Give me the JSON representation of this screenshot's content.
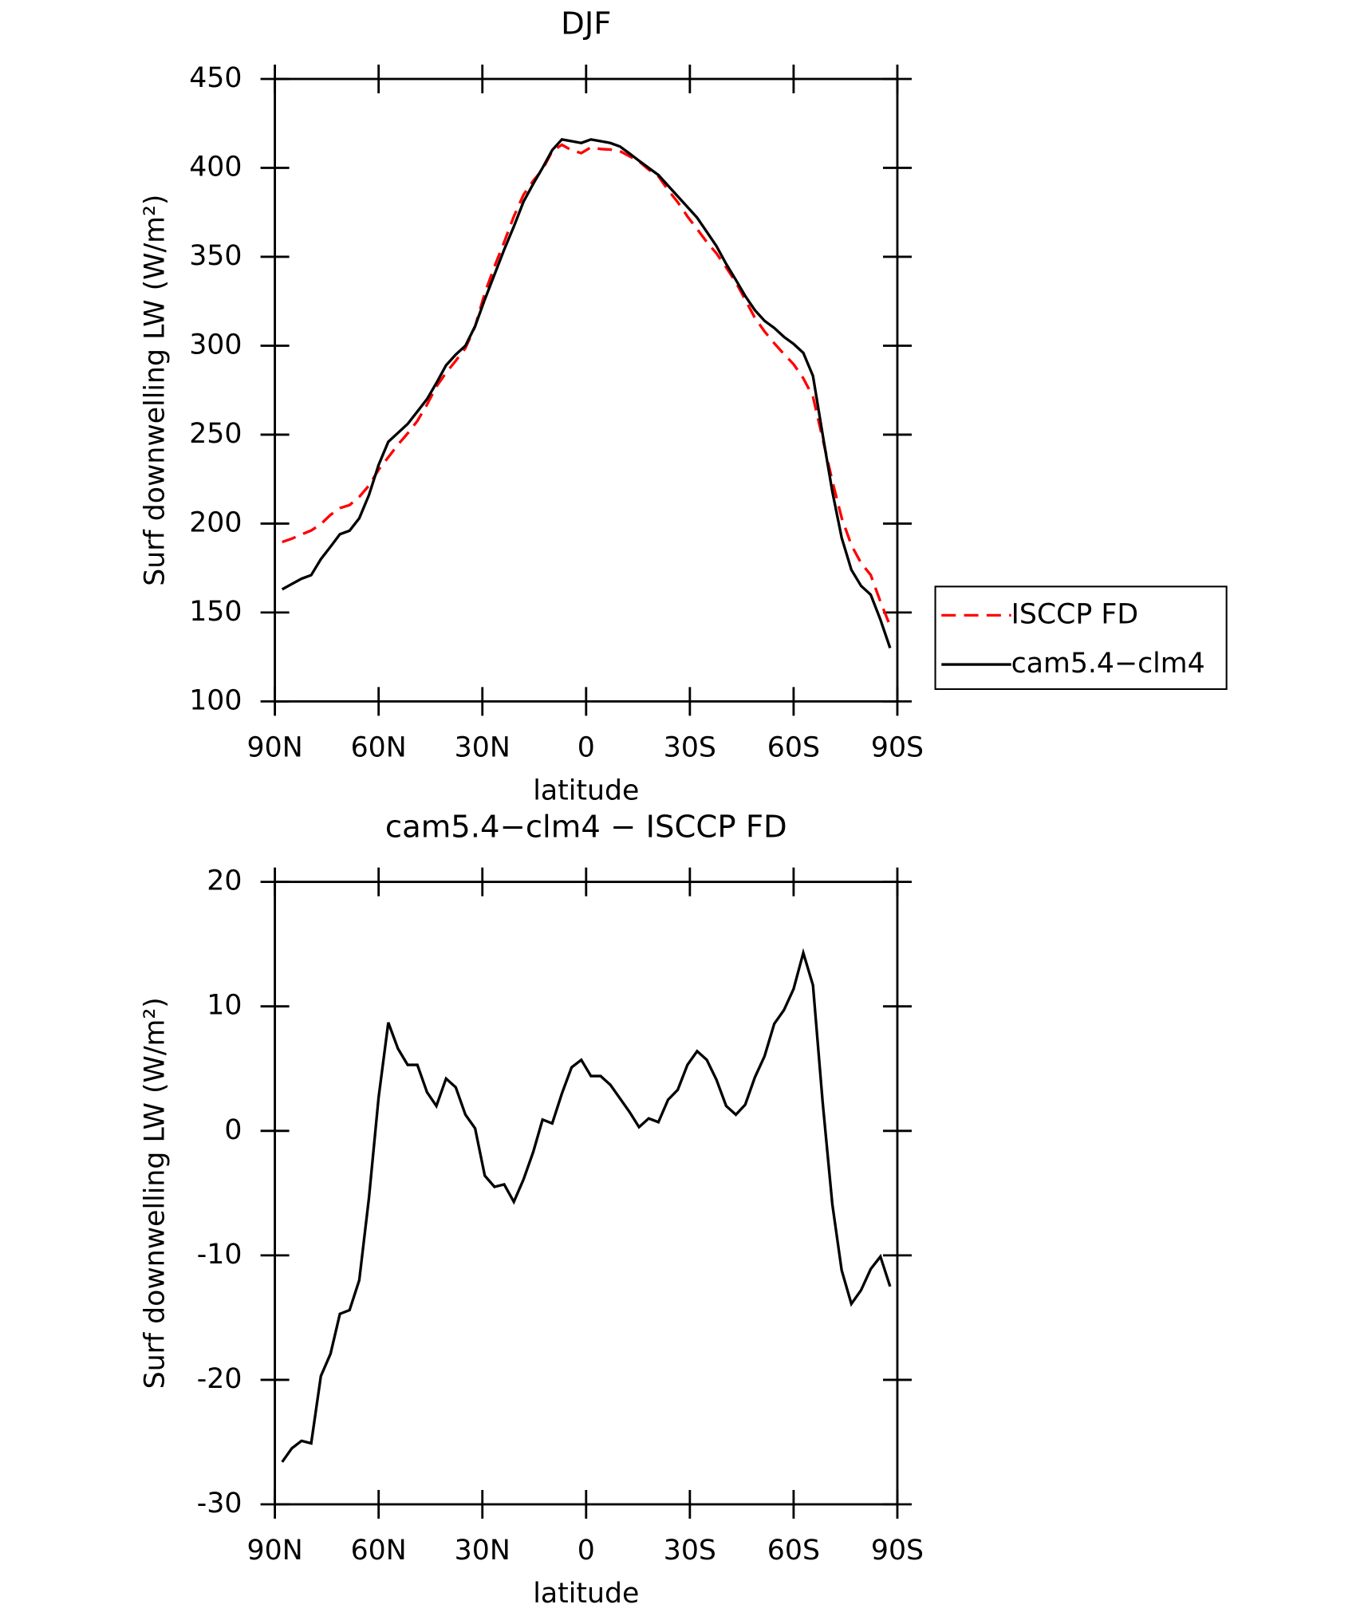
{
  "chart_data": [
    {
      "type": "line",
      "title": "DJF",
      "x_label": "latitude",
      "y_label": "Surf downwelling LW (W/m²)",
      "x": [
        87.9,
        85.1,
        82.3,
        79.5,
        76.7,
        73.9,
        71.2,
        68.4,
        65.6,
        62.8,
        60.0,
        57.2,
        54.4,
        51.6,
        48.8,
        46.0,
        43.3,
        40.5,
        37.7,
        34.9,
        32.1,
        29.3,
        26.5,
        23.7,
        20.9,
        18.1,
        15.3,
        12.6,
        9.8,
        7.0,
        4.2,
        1.4,
        -1.4,
        -4.2,
        -7.0,
        -9.8,
        -12.6,
        -15.3,
        -18.1,
        -20.9,
        -23.7,
        -26.5,
        -29.3,
        -32.1,
        -34.9,
        -37.7,
        -40.5,
        -43.3,
        -46.0,
        -48.8,
        -51.6,
        -54.4,
        -57.2,
        -60.0,
        -62.8,
        -65.6,
        -68.4,
        -71.2,
        -73.9,
        -76.7,
        -79.5,
        -82.3,
        -85.1,
        -87.9
      ],
      "series": [
        {
          "name": "ISCCP FD",
          "color": "#ff0000",
          "dashed": true,
          "values": [
            189.6,
            191.5,
            193.9,
            196.1,
            199.7,
            204.9,
            208.7,
            210.4,
            215,
            221.4,
            230.3,
            237.3,
            244.4,
            250.7,
            257.7,
            266.9,
            277,
            284.8,
            291.5,
            298.7,
            310.8,
            329.6,
            344.5,
            358.3,
            372.7,
            384.9,
            392.7,
            399.1,
            409.4,
            413,
            409.9,
            408.3,
            411.6,
            410.6,
            410.3,
            409.4,
            406.5,
            403.7,
            399,
            395.3,
            387.5,
            380.7,
            372.7,
            365.6,
            358.3,
            351.9,
            344,
            335.7,
            325.9,
            315.7,
            308,
            301.4,
            295.3,
            289.6,
            281.7,
            271.3,
            247.7,
            223.9,
            203.2,
            187.9,
            177.8,
            171.1,
            156.1,
            142.5
          ]
        },
        {
          "name": "cam5.4−clm4",
          "color": "#000000",
          "dashed": false,
          "values": [
            163,
            166,
            169,
            171,
            180,
            187,
            194,
            196,
            203,
            216,
            233,
            246,
            251,
            256,
            263,
            270,
            279,
            289,
            295,
            300,
            311,
            326,
            340,
            354,
            367,
            381,
            391,
            400,
            410,
            416,
            415,
            414,
            416,
            415,
            414,
            412,
            408,
            404,
            400,
            396,
            390,
            384,
            378,
            372,
            364,
            356,
            346,
            337,
            328,
            320,
            314,
            310,
            305,
            301,
            296,
            283,
            250,
            218,
            192,
            174,
            165,
            160,
            146,
            130
          ]
        }
      ],
      "xlim": [
        90,
        -90
      ],
      "xticks": [
        {
          "value": 90,
          "label": "90N"
        },
        {
          "value": 60,
          "label": "60N"
        },
        {
          "value": 30,
          "label": "30N"
        },
        0,
        {
          "value": -30,
          "label": "30S"
        },
        {
          "value": -60,
          "label": "60S"
        },
        {
          "value": -90,
          "label": "90S"
        }
      ],
      "ylim": [
        100,
        450
      ],
      "yticks": [
        100,
        150,
        200,
        250,
        300,
        350,
        400,
        450
      ],
      "legend": "right"
    },
    {
      "type": "line",
      "title": "cam5.4−clm4 − ISCCP FD",
      "x_label": "latitude",
      "y_label": "Surf downwelling LW (W/m²)",
      "x": [
        87.9,
        85.1,
        82.3,
        79.5,
        76.7,
        73.9,
        71.2,
        68.4,
        65.6,
        62.8,
        60.0,
        57.2,
        54.4,
        51.6,
        48.8,
        46.0,
        43.3,
        40.5,
        37.7,
        34.9,
        32.1,
        29.3,
        26.5,
        23.7,
        20.9,
        18.1,
        15.3,
        12.6,
        9.8,
        7.0,
        4.2,
        1.4,
        -1.4,
        -4.2,
        -7.0,
        -9.8,
        -12.6,
        -15.3,
        -18.1,
        -20.9,
        -23.7,
        -26.5,
        -29.3,
        -32.1,
        -34.9,
        -37.7,
        -40.5,
        -43.3,
        -46.0,
        -48.8,
        -51.6,
        -54.4,
        -57.2,
        -60.0,
        -62.8,
        -65.6,
        -68.4,
        -71.2,
        -73.9,
        -76.7,
        -79.5,
        -82.3,
        -85.1,
        -87.9
      ],
      "series": [
        {
          "color": "#000000",
          "dashed": false,
          "values": [
            -26.6,
            -25.5,
            -24.9,
            -25.1,
            -19.7,
            -17.9,
            -14.7,
            -14.4,
            -12,
            -5.4,
            2.7,
            8.7,
            6.6,
            5.3,
            5.3,
            3.1,
            2,
            4.2,
            3.5,
            1.3,
            0.2,
            -3.6,
            -4.5,
            -4.3,
            -5.7,
            -3.9,
            -1.7,
            0.9,
            0.6,
            3,
            5.1,
            5.7,
            4.4,
            4.4,
            3.7,
            2.6,
            1.5,
            0.3,
            1,
            0.7,
            2.5,
            3.3,
            5.3,
            6.4,
            5.7,
            4.1,
            2,
            1.3,
            2.1,
            4.3,
            6,
            8.6,
            9.7,
            11.4,
            14.3,
            11.7,
            2.3,
            -5.9,
            -11.2,
            -13.9,
            -12.8,
            -11.1,
            -10.1,
            -12.5
          ]
        }
      ],
      "xlim": [
        90,
        -90
      ],
      "xticks": [
        {
          "value": 90,
          "label": "90N"
        },
        {
          "value": 60,
          "label": "60N"
        },
        {
          "value": 30,
          "label": "30N"
        },
        0,
        {
          "value": -30,
          "label": "30S"
        },
        {
          "value": -60,
          "label": "60S"
        },
        {
          "value": -90,
          "label": "90S"
        }
      ],
      "ylim": [
        -30,
        20
      ],
      "yticks": [
        -30,
        -20,
        -10,
        0,
        10,
        20
      ]
    }
  ]
}
